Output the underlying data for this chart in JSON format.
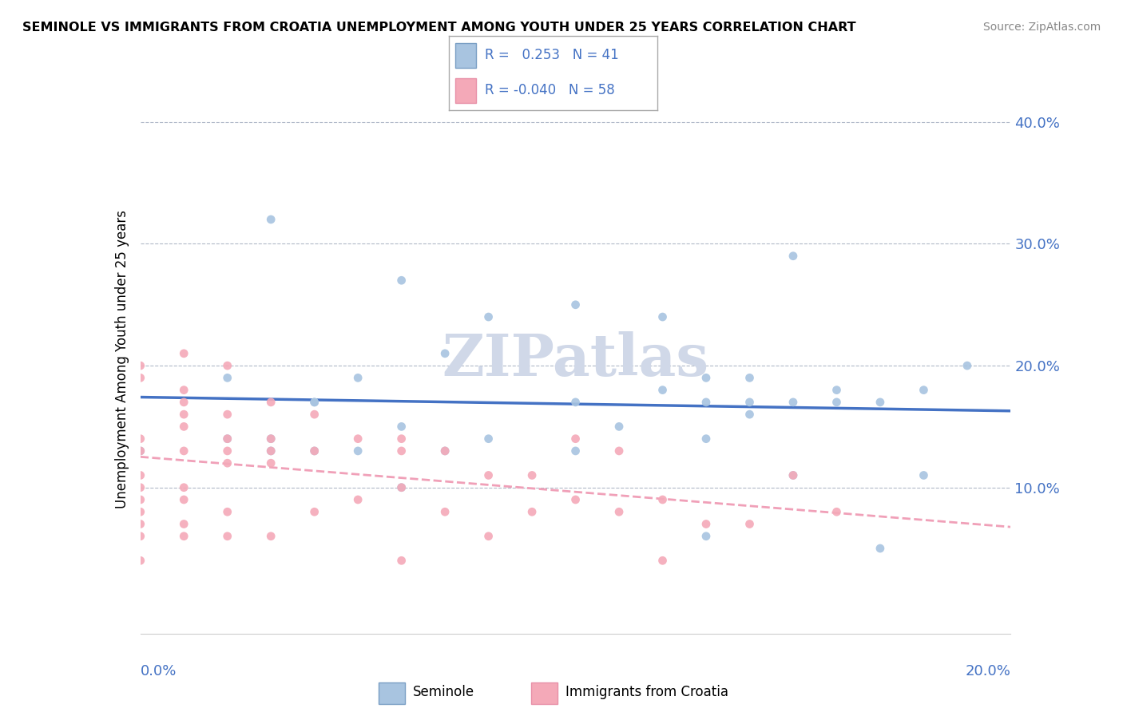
{
  "title": "SEMINOLE VS IMMIGRANTS FROM CROATIA UNEMPLOYMENT AMONG YOUTH UNDER 25 YEARS CORRELATION CHART",
  "source": "Source: ZipAtlas.com",
  "ylabel": "Unemployment Among Youth under 25 years",
  "xlim": [
    0.0,
    0.2
  ],
  "ylim": [
    -0.02,
    0.43
  ],
  "seminole_R": 0.253,
  "seminole_N": 41,
  "croatia_R": -0.04,
  "croatia_N": 58,
  "seminole_color": "#a8c4e0",
  "croatia_color": "#f4a9b8",
  "seminole_line_color": "#4472c4",
  "croatia_line_color": "#f0a0b8",
  "watermark": "ZIPatlas",
  "watermark_color": "#d0d8e8",
  "seminole_x": [
    0.0,
    0.02,
    0.02,
    0.03,
    0.03,
    0.03,
    0.04,
    0.04,
    0.04,
    0.05,
    0.05,
    0.06,
    0.06,
    0.06,
    0.07,
    0.07,
    0.08,
    0.08,
    0.1,
    0.1,
    0.1,
    0.11,
    0.12,
    0.12,
    0.13,
    0.13,
    0.13,
    0.13,
    0.14,
    0.14,
    0.14,
    0.15,
    0.15,
    0.15,
    0.16,
    0.16,
    0.17,
    0.17,
    0.18,
    0.18,
    0.19
  ],
  "seminole_y": [
    0.13,
    0.19,
    0.14,
    0.32,
    0.14,
    0.13,
    0.17,
    0.13,
    0.17,
    0.13,
    0.19,
    0.27,
    0.1,
    0.15,
    0.21,
    0.13,
    0.14,
    0.24,
    0.13,
    0.25,
    0.17,
    0.15,
    0.24,
    0.18,
    0.14,
    0.17,
    0.19,
    0.06,
    0.16,
    0.17,
    0.19,
    0.11,
    0.17,
    0.29,
    0.18,
    0.17,
    0.17,
    0.05,
    0.18,
    0.11,
    0.2
  ],
  "croatia_x": [
    0.0,
    0.0,
    0.0,
    0.0,
    0.0,
    0.0,
    0.0,
    0.0,
    0.0,
    0.0,
    0.0,
    0.01,
    0.01,
    0.01,
    0.01,
    0.01,
    0.01,
    0.01,
    0.01,
    0.01,
    0.01,
    0.02,
    0.02,
    0.02,
    0.02,
    0.02,
    0.02,
    0.02,
    0.03,
    0.03,
    0.03,
    0.03,
    0.03,
    0.04,
    0.04,
    0.04,
    0.05,
    0.05,
    0.06,
    0.06,
    0.06,
    0.06,
    0.07,
    0.07,
    0.08,
    0.08,
    0.09,
    0.09,
    0.1,
    0.1,
    0.11,
    0.11,
    0.12,
    0.12,
    0.13,
    0.14,
    0.15,
    0.16
  ],
  "croatia_y": [
    0.2,
    0.19,
    0.14,
    0.13,
    0.11,
    0.1,
    0.09,
    0.08,
    0.07,
    0.06,
    0.04,
    0.21,
    0.18,
    0.17,
    0.16,
    0.15,
    0.13,
    0.1,
    0.09,
    0.07,
    0.06,
    0.2,
    0.16,
    0.14,
    0.13,
    0.12,
    0.08,
    0.06,
    0.17,
    0.14,
    0.13,
    0.12,
    0.06,
    0.16,
    0.13,
    0.08,
    0.14,
    0.09,
    0.14,
    0.13,
    0.1,
    0.04,
    0.13,
    0.08,
    0.11,
    0.06,
    0.11,
    0.08,
    0.14,
    0.09,
    0.13,
    0.08,
    0.09,
    0.04,
    0.07,
    0.07,
    0.11,
    0.08
  ]
}
